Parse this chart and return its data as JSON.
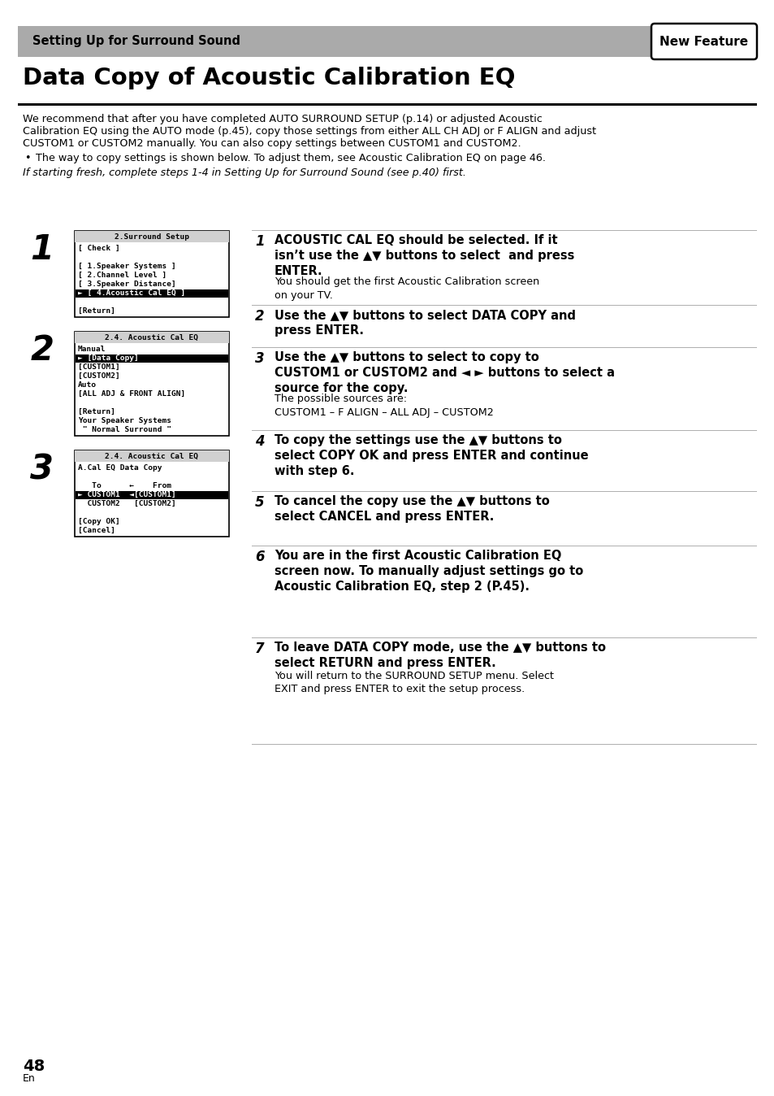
{
  "page_bg": "#ffffff",
  "header_bg": "#aaaaaa",
  "header_text": "Setting Up for Surround Sound",
  "new_feature_text": "New Feature",
  "title": "Data Copy of Acoustic Calibration EQ",
  "intro_line1": "We recommend that after you have completed AUTO SURROUND SETUP (p.14) or adjusted Acoustic",
  "intro_line2": "Calibration EQ using the AUTO mode (p.45), copy those settings from either ALL CH ADJ or F ALIGN and adjust",
  "intro_line3": "CUSTOM1 or CUSTOM2 manually. You can also copy settings between CUSTOM1 and CUSTOM2.",
  "bullet_text": "The way to copy settings is shown below. To adjust them, see Acoustic Calibration EQ on page 46.",
  "fresh_text": "If starting fresh, complete steps 1-4 in Setting Up for Surround Sound (see p.40) first.",
  "screen1_title": "2.Surround Setup",
  "screen1_lines": [
    "[ Check ]",
    "",
    "[ 1.Speaker Systems ]",
    "[ 2.Channel Level ]",
    "[ 3.Speaker Distance]",
    "► [ 4.Acoustic Cal EQ ]",
    "",
    "[Return]"
  ],
  "screen1_highlight_line": 5,
  "screen2_title": "2.4. Acoustic Cal EQ",
  "screen2_lines": [
    "Manual",
    "► [Data Copy]",
    "[CUSTOM1]",
    "[CUSTOM2]",
    "Auto",
    "[ALL ADJ & FRONT ALIGN]",
    "",
    "[Return]",
    "Your Speaker Systems",
    " \" Normal Surround \""
  ],
  "screen2_highlight_line": 1,
  "screen3_title": "2.4. Acoustic Cal EQ",
  "screen3_lines": [
    "A.Cal EQ Data Copy",
    "",
    "   To      ←    From",
    "► CUSTOM1  ◄[CUSTOM1]",
    "  CUSTOM2   [CUSTOM2]",
    "",
    "[Copy OK]",
    "[Cancel]"
  ],
  "screen3_highlight_line": 3,
  "right_steps": [
    {
      "num": "1",
      "bold_text": "ACOUSTIC CAL EQ should be selected. If it isn’t use the ▲▼ buttons to select  and press ENTER.",
      "normal_text": "You should get the first Acoustic Calibration screen\non your TV."
    },
    {
      "num": "2",
      "bold_text": "Use the ▲▼ buttons to select DATA COPY and press ENTER.",
      "normal_text": ""
    },
    {
      "num": "3",
      "bold_text": "Use the ▲▼ buttons to select to copy to CUSTOM1 or CUSTOM2 and ◄ ► buttons to select a source for the copy.",
      "normal_text": "The possible sources are:\nCUSTOM1 – F ALIGN – ALL ADJ – CUSTOM2"
    },
    {
      "num": "4",
      "bold_text": "To copy the settings use the ▲▼ buttons to select COPY OK and press ENTER and continue with step 6.",
      "normal_text": ""
    },
    {
      "num": "5",
      "bold_text": "To cancel the copy use the ▲▼ buttons to select CANCEL and press ENTER.",
      "normal_text": ""
    },
    {
      "num": "6",
      "bold_text": "You are in the first Acoustic Calibration EQ screen now. To manually adjust settings go to Acoustic Calibration EQ, step 2 (P.45).",
      "normal_text": ""
    },
    {
      "num": "7",
      "bold_text": "To leave DATA COPY mode, use the ▲▼ buttons to select RETURN and press ENTER.",
      "normal_text": "You will return to the SURROUND SETUP menu. Select\nEXIT and press ENTER to exit the setup process."
    }
  ],
  "page_number": "48",
  "page_lang": "En"
}
